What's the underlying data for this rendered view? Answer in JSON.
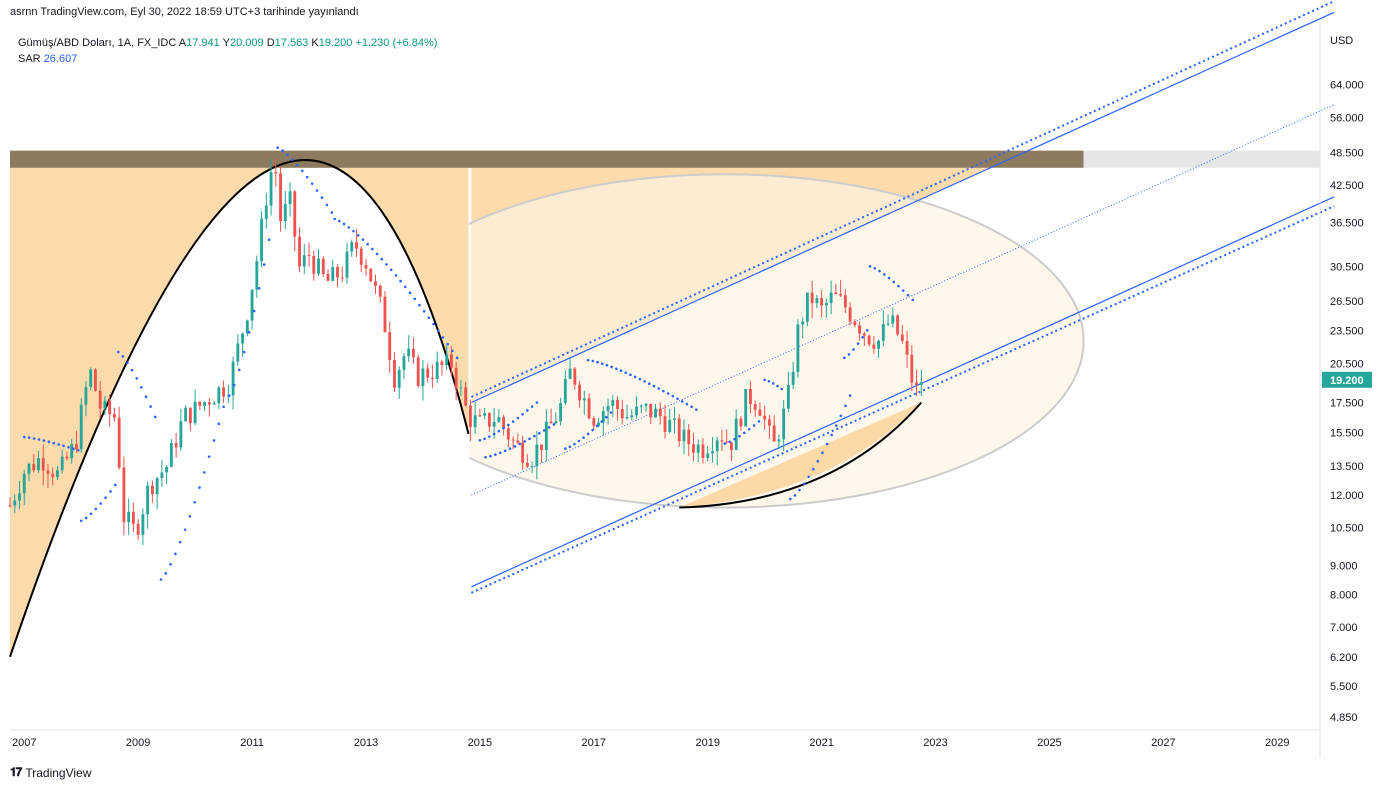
{
  "header": {
    "text": "asrnn TradingView.com, Eyl 30, 2022 18:59 UTC+3 tarihinde yayınlandı"
  },
  "legend": {
    "symbol": "Gümüş/ABD Doları, 1A, FX_IDC",
    "open_label": "A",
    "open": "17.941",
    "high_label": "Y",
    "high": "20.009",
    "low_label": "D",
    "low": "17.563",
    "close_label": "K",
    "close": "19.200",
    "change": "+1.230 (+6.84%)",
    "sar_label": "SAR",
    "sar_value": "26.607"
  },
  "footer": {
    "brand": "TradingView"
  },
  "chart_data": {
    "type": "candlestick",
    "currency": "USD",
    "last_price": 19.2,
    "last_price_label": "19.200",
    "y_scale": "log",
    "ylim": [
      4.6,
      80
    ],
    "xlim": [
      2006.75,
      2029.75
    ],
    "y_ticks": [
      "64.000",
      "56.000",
      "48.500",
      "42.500",
      "36.500",
      "30.500",
      "26.500",
      "23.500",
      "20.500",
      "17.500",
      "15.500",
      "13.500",
      "12.000",
      "10.500",
      "9.000",
      "8.000",
      "7.000",
      "6.200",
      "5.500",
      "4.850"
    ],
    "x_ticks": [
      "2007",
      "2009",
      "2011",
      "2013",
      "2015",
      "2017",
      "2019",
      "2021",
      "2023",
      "2025",
      "2027",
      "2029"
    ],
    "colors": {
      "up": "#26a69a",
      "down": "#ef5350",
      "sar": "#2962ff",
      "channel": "#2962ff",
      "cup_fill": "#fdd9a8",
      "cup_line": "#000000",
      "resistance": "#8d7b60",
      "circle": "#cccccc"
    },
    "price_path": [
      [
        2006.75,
        11.5
      ],
      [
        2007.0,
        13.2
      ],
      [
        2007.3,
        14.0
      ],
      [
        2007.6,
        13.0
      ],
      [
        2007.9,
        14.8
      ],
      [
        2008.15,
        20.0
      ],
      [
        2008.35,
        17.0
      ],
      [
        2008.6,
        16.5
      ],
      [
        2008.75,
        11.0
      ],
      [
        2008.95,
        10.3
      ],
      [
        2009.2,
        12.5
      ],
      [
        2009.5,
        13.5
      ],
      [
        2009.8,
        16.5
      ],
      [
        2010.0,
        17.0
      ],
      [
        2010.3,
        18.0
      ],
      [
        2010.6,
        19.0
      ],
      [
        2010.9,
        25.0
      ],
      [
        2011.1,
        32.0
      ],
      [
        2011.3,
        44.0
      ],
      [
        2011.4,
        46.5
      ],
      [
        2011.5,
        37.0
      ],
      [
        2011.7,
        40.0
      ],
      [
        2011.8,
        30.0
      ],
      [
        2012.0,
        32.0
      ],
      [
        2012.3,
        28.5
      ],
      [
        2012.6,
        30.0
      ],
      [
        2012.8,
        33.5
      ],
      [
        2013.0,
        31.0
      ],
      [
        2013.3,
        25.0
      ],
      [
        2013.5,
        19.5
      ],
      [
        2013.7,
        21.5
      ],
      [
        2013.9,
        19.5
      ],
      [
        2014.2,
        20.0
      ],
      [
        2014.5,
        20.5
      ],
      [
        2014.8,
        16.5
      ],
      [
        2015.0,
        16.0
      ],
      [
        2015.3,
        16.5
      ],
      [
        2015.6,
        14.8
      ],
      [
        2015.9,
        14.0
      ],
      [
        2016.1,
        15.0
      ],
      [
        2016.4,
        17.0
      ],
      [
        2016.6,
        20.0
      ],
      [
        2016.8,
        18.0
      ],
      [
        2017.0,
        16.5
      ],
      [
        2017.3,
        17.5
      ],
      [
        2017.6,
        16.5
      ],
      [
        2017.9,
        17.0
      ],
      [
        2018.2,
        16.5
      ],
      [
        2018.6,
        15.0
      ],
      [
        2018.9,
        14.5
      ],
      [
        2019.2,
        15.5
      ],
      [
        2019.4,
        14.8
      ],
      [
        2019.7,
        18.0
      ],
      [
        2019.9,
        17.5
      ],
      [
        2020.15,
        14.5
      ],
      [
        2020.4,
        17.5
      ],
      [
        2020.6,
        24.0
      ],
      [
        2020.8,
        27.0
      ],
      [
        2021.0,
        25.5
      ],
      [
        2021.2,
        27.0
      ],
      [
        2021.4,
        26.0
      ],
      [
        2021.6,
        24.5
      ],
      [
        2021.8,
        23.0
      ],
      [
        2022.0,
        22.5
      ],
      [
        2022.2,
        24.5
      ],
      [
        2022.4,
        22.5
      ],
      [
        2022.6,
        19.0
      ],
      [
        2022.7,
        18.0
      ],
      [
        2022.75,
        19.2
      ]
    ],
    "sar_segments": [
      {
        "from": 2007.0,
        "to": 2007.95,
        "start": 15.2,
        "end": 14.4
      },
      {
        "from": 2008.0,
        "to": 2008.6,
        "start": 10.8,
        "end": 12.5
      },
      {
        "from": 2008.65,
        "to": 2009.3,
        "start": 21.5,
        "end": 16.5
      },
      {
        "from": 2009.4,
        "to": 2010.5,
        "start": 8.5,
        "end": 17.2
      },
      {
        "from": 2010.6,
        "to": 2011.3,
        "start": 18.0,
        "end": 34.0
      },
      {
        "from": 2011.45,
        "to": 2012.4,
        "start": 49.5,
        "end": 38.0
      },
      {
        "from": 2012.45,
        "to": 2014.6,
        "start": 37.0,
        "end": 21.0
      },
      {
        "from": 2015.0,
        "to": 2016.0,
        "start": 15.0,
        "end": 17.5
      },
      {
        "from": 2015.1,
        "to": 2016.3,
        "start": 14.0,
        "end": 16.0
      },
      {
        "from": 2016.5,
        "to": 2017.3,
        "start": 14.5,
        "end": 16.8
      },
      {
        "from": 2016.9,
        "to": 2018.8,
        "start": 20.8,
        "end": 17.0
      },
      {
        "from": 2019.3,
        "to": 2019.9,
        "start": 14.8,
        "end": 16.2
      },
      {
        "from": 2020.0,
        "to": 2020.3,
        "start": 19.2,
        "end": 18.5
      },
      {
        "from": 2020.45,
        "to": 2021.5,
        "start": 11.8,
        "end": 18.0
      },
      {
        "from": 2021.4,
        "to": 2021.8,
        "start": 21.0,
        "end": 23.5
      },
      {
        "from": 2021.85,
        "to": 2022.6,
        "start": 30.5,
        "end": 26.6
      }
    ],
    "channel": {
      "upper": [
        [
          2014.85,
          17.5
        ],
        [
          2030.0,
          86.0
        ]
      ],
      "upper_dotted": [
        [
          2014.85,
          17.9
        ],
        [
          2030.0,
          90.0
        ]
      ],
      "middle_dotted": [
        [
          2014.85,
          12.0
        ],
        [
          2030.0,
          59.0
        ]
      ],
      "lower": [
        [
          2014.85,
          8.25
        ],
        [
          2030.0,
          40.5
        ]
      ],
      "lower_dotted": [
        [
          2014.85,
          8.05
        ],
        [
          2030.0,
          39.0
        ]
      ]
    },
    "resistance_zone": [
      45.6,
      48.9
    ],
    "cup_left_bottom": [
      [
        2006.75,
        6.2
      ],
      [
        2011.35,
        45.5
      ],
      [
        2014.8,
        15.4
      ]
    ],
    "cup_right_bottom": [
      [
        2014.8,
        15.4
      ],
      [
        2018.5,
        11.4
      ],
      [
        2022.75,
        17.5
      ]
    ],
    "cup_rim_x": [
      2006.75,
      2025.6
    ]
  }
}
